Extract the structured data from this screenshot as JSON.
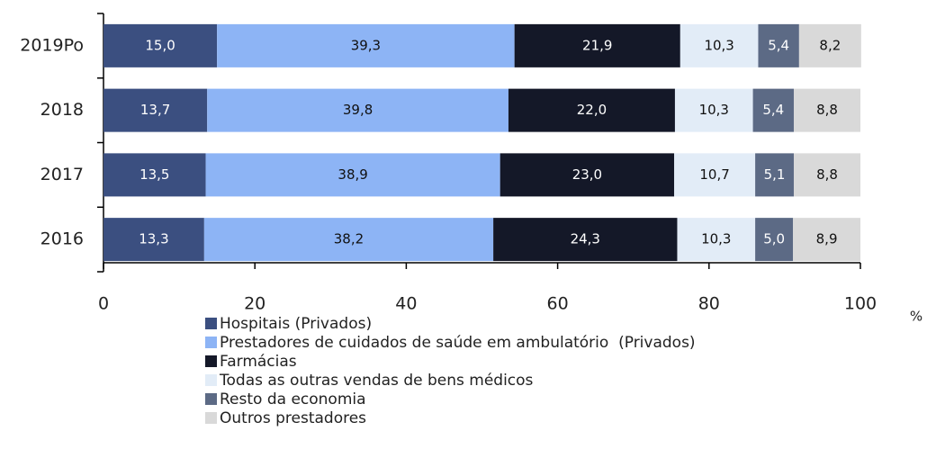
{
  "chart_data": {
    "type": "stacked-bar-horizontal",
    "categories": [
      "2019Po",
      "2018",
      "2017",
      "2016"
    ],
    "series": [
      {
        "name": "Hospitais (Privados)",
        "color": "#3b4f80",
        "values": [
          15.0,
          13.7,
          13.5,
          13.3
        ],
        "value_labels": [
          "15,0",
          "13,7",
          "13,5",
          "13,3"
        ]
      },
      {
        "name": "Prestadores de cuidados de saúde em ambulatório  (Privados)",
        "color": "#8db4f5",
        "values": [
          39.3,
          39.8,
          38.9,
          38.2
        ],
        "value_labels": [
          "39,3",
          "39,8",
          "38,9",
          "38,2"
        ]
      },
      {
        "name": "Farmácias",
        "color": "#141828",
        "values": [
          21.9,
          22.0,
          23.0,
          24.3
        ],
        "value_labels": [
          "21,9",
          "22,0",
          "23,0",
          "24,3"
        ]
      },
      {
        "name": "Todas as outras vendas de bens médicos",
        "color": "#e2ecf7",
        "values": [
          10.3,
          10.3,
          10.7,
          10.3
        ],
        "value_labels": [
          "10,3",
          "10,3",
          "10,7",
          "10,3"
        ]
      },
      {
        "name": "Resto da economia",
        "color": "#5c6a85",
        "values": [
          5.4,
          5.4,
          5.1,
          5.0
        ],
        "value_labels": [
          "5,4",
          "5,4",
          "5,1",
          "5,0"
        ]
      },
      {
        "name": "Outros prestadores",
        "color": "#d9d9d9",
        "values": [
          8.2,
          8.8,
          8.8,
          8.9
        ],
        "value_labels": [
          "8,2",
          "8,8",
          "8,8",
          "8,9"
        ]
      }
    ],
    "x_label": "%",
    "xlim": [
      0,
      100
    ],
    "xticks": [
      0,
      20,
      40,
      60,
      80,
      100
    ]
  }
}
